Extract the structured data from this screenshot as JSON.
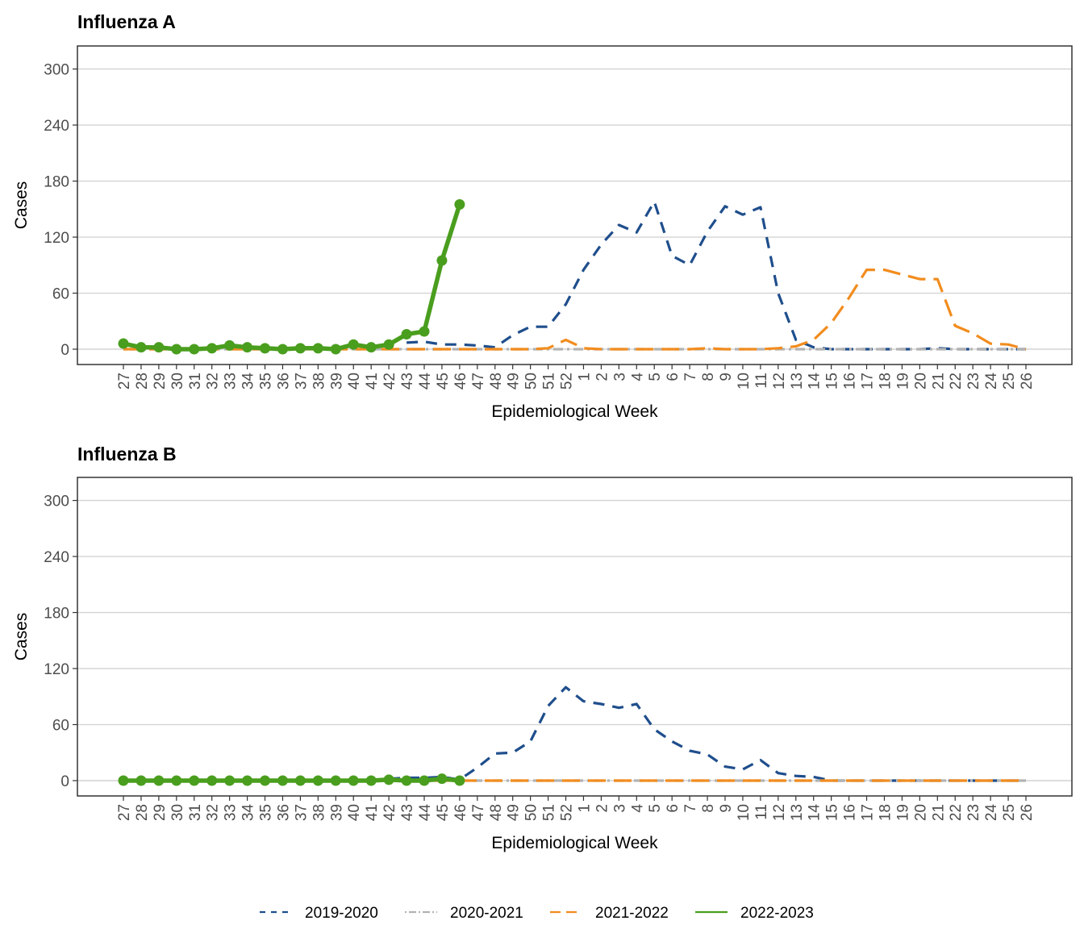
{
  "chart_data": [
    {
      "type": "line",
      "title": "Influenza A",
      "xlabel": "Epidemiological Week",
      "ylabel": "Cases",
      "ylim": [
        0,
        300
      ],
      "yticks": [
        0,
        60,
        120,
        180,
        240,
        300
      ],
      "grid": "horizontal",
      "categories": [
        "27",
        "28",
        "29",
        "30",
        "31",
        "32",
        "33",
        "34",
        "35",
        "36",
        "37",
        "38",
        "39",
        "40",
        "41",
        "42",
        "43",
        "44",
        "45",
        "46",
        "47",
        "48",
        "49",
        "50",
        "51",
        "52",
        "1",
        "2",
        "3",
        "4",
        "5",
        "6",
        "7",
        "8",
        "9",
        "10",
        "11",
        "12",
        "13",
        "14",
        "15",
        "16",
        "17",
        "18",
        "19",
        "20",
        "21",
        "22",
        "23",
        "24",
        "25",
        "26"
      ],
      "series": [
        {
          "name": "2019-2020",
          "values": [
            null,
            null,
            null,
            null,
            null,
            null,
            null,
            null,
            null,
            null,
            null,
            null,
            null,
            null,
            null,
            null,
            7,
            8,
            5,
            5,
            4,
            2,
            15,
            24,
            24,
            48,
            85,
            112,
            133,
            125,
            158,
            100,
            90,
            126,
            153,
            144,
            152,
            60,
            10,
            2,
            0,
            0,
            0,
            0,
            0,
            0,
            1,
            0,
            0,
            0,
            0,
            0
          ]
        },
        {
          "name": "2020-2021",
          "values": [
            0,
            0,
            0,
            0,
            0,
            0,
            0,
            0,
            0,
            0,
            0,
            0,
            0,
            0,
            0,
            0,
            0,
            0,
            0,
            0,
            0,
            0,
            0,
            0,
            0,
            0,
            0,
            0,
            0,
            0,
            0,
            0,
            0,
            0,
            0,
            0,
            0,
            0,
            0,
            0,
            0,
            0,
            0,
            0,
            0,
            0,
            0,
            0,
            0,
            0,
            0,
            0
          ]
        },
        {
          "name": "2021-2022",
          "values": [
            0,
            0,
            0,
            0,
            0,
            0,
            0,
            0,
            0,
            0,
            0,
            0,
            0,
            0,
            0,
            0,
            0,
            0,
            0,
            0,
            0,
            0,
            0,
            0,
            1,
            10,
            1,
            0,
            0,
            0,
            0,
            0,
            0,
            1,
            0,
            0,
            0,
            1,
            3,
            10,
            28,
            55,
            85,
            85,
            80,
            75,
            75,
            25,
            17,
            6,
            5,
            0
          ]
        },
        {
          "name": "2022-2023",
          "values": [
            6,
            2,
            2,
            0,
            0,
            1,
            4,
            2,
            1,
            0,
            1,
            1,
            0,
            5,
            2,
            5,
            16,
            19,
            95,
            155,
            null,
            null,
            null,
            null,
            null,
            null,
            null,
            null,
            null,
            null,
            null,
            null,
            null,
            null,
            null,
            null,
            null,
            null,
            null,
            null,
            null,
            null,
            null,
            null,
            null,
            null,
            null,
            null,
            null,
            null,
            null,
            null
          ]
        }
      ]
    },
    {
      "type": "line",
      "title": "Influenza B",
      "xlabel": "Epidemiological Week",
      "ylabel": "Cases",
      "ylim": [
        0,
        300
      ],
      "yticks": [
        0,
        60,
        120,
        180,
        240,
        300
      ],
      "grid": "horizontal",
      "categories": [
        "27",
        "28",
        "29",
        "30",
        "31",
        "32",
        "33",
        "34",
        "35",
        "36",
        "37",
        "38",
        "39",
        "40",
        "41",
        "42",
        "43",
        "44",
        "45",
        "46",
        "47",
        "48",
        "49",
        "50",
        "51",
        "52",
        "1",
        "2",
        "3",
        "4",
        "5",
        "6",
        "7",
        "8",
        "9",
        "10",
        "11",
        "12",
        "13",
        "14",
        "15",
        "16",
        "17",
        "18",
        "19",
        "20",
        "21",
        "22",
        "23",
        "24",
        "25",
        "26"
      ],
      "series": [
        {
          "name": "2019-2020",
          "values": [
            null,
            null,
            null,
            null,
            null,
            null,
            null,
            null,
            null,
            null,
            null,
            null,
            null,
            null,
            null,
            2,
            3,
            3,
            4,
            1,
            14,
            29,
            30,
            42,
            80,
            100,
            85,
            82,
            78,
            82,
            55,
            42,
            32,
            28,
            15,
            12,
            22,
            8,
            5,
            4,
            0,
            0,
            0,
            0,
            0,
            0,
            0,
            0,
            0,
            0,
            0,
            0
          ]
        },
        {
          "name": "2020-2021",
          "values": [
            0,
            0,
            0,
            0,
            0,
            0,
            0,
            0,
            0,
            0,
            0,
            0,
            0,
            0,
            0,
            0,
            0,
            0,
            0,
            0,
            0,
            0,
            0,
            0,
            0,
            0,
            0,
            0,
            0,
            0,
            0,
            0,
            0,
            0,
            0,
            0,
            0,
            0,
            0,
            0,
            0,
            0,
            0,
            0,
            0,
            0,
            0,
            0,
            0,
            0,
            0,
            0
          ]
        },
        {
          "name": "2021-2022",
          "values": [
            0,
            0,
            0,
            0,
            0,
            0,
            0,
            0,
            0,
            0,
            0,
            0,
            0,
            0,
            0,
            0,
            0,
            0,
            0,
            0,
            0,
            0,
            0,
            0,
            0,
            0,
            0,
            0,
            0,
            0,
            0,
            0,
            0,
            0,
            0,
            0,
            0,
            0,
            0,
            0,
            0,
            0,
            0,
            0,
            0,
            0,
            0,
            0,
            0,
            0,
            0,
            0
          ]
        },
        {
          "name": "2022-2023",
          "values": [
            0,
            0,
            0,
            0,
            0,
            0,
            0,
            0,
            0,
            0,
            0,
            0,
            0,
            0,
            0,
            1,
            0,
            0,
            2,
            0,
            null,
            null,
            null,
            null,
            null,
            null,
            null,
            null,
            null,
            null,
            null,
            null,
            null,
            null,
            null,
            null,
            null,
            null,
            null,
            null,
            null,
            null,
            null,
            null,
            null,
            null,
            null,
            null,
            null,
            null,
            null,
            null
          ]
        }
      ]
    }
  ],
  "legend": {
    "position": "bottom",
    "items": [
      {
        "label": "2019-2020",
        "color": "#1f4e8c",
        "style": "dashed"
      },
      {
        "label": "2020-2021",
        "color": "#b3b3b3",
        "style": "dotdash"
      },
      {
        "label": "2021-2022",
        "color": "#f28c1e",
        "style": "longdash"
      },
      {
        "label": "2022-2023",
        "color": "#4a9e1e",
        "style": "solid"
      }
    ]
  }
}
